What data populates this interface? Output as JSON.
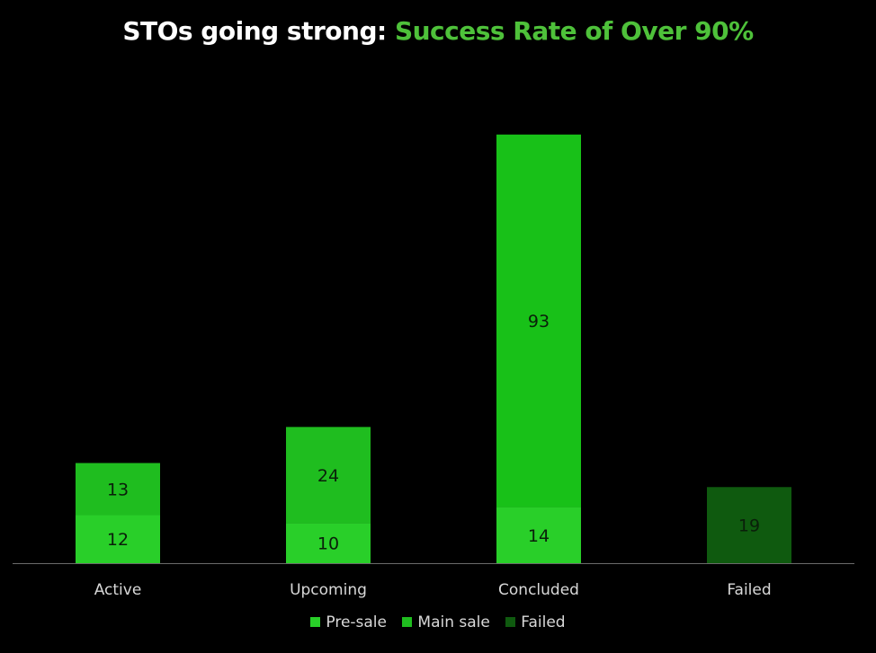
{
  "title": {
    "part1": "STOs going strong: ",
    "part2": "Success Rate of Over 90%"
  },
  "colors": {
    "background": "#000000",
    "title_accent": "#4ec13a",
    "pre_sale": "#29cf29",
    "main_sale": "#1fbd1f",
    "concluded_main": "#18c118",
    "failed": "#0f5a0f",
    "axis_line": "#6a6a6a"
  },
  "chart_data": {
    "type": "bar",
    "stacked": true,
    "categories": [
      "Active",
      "Upcoming",
      "Concluded",
      "Failed"
    ],
    "series": [
      {
        "name": "Pre-sale",
        "values": [
          12,
          10,
          14,
          null
        ]
      },
      {
        "name": "Main sale",
        "values": [
          13,
          24,
          93,
          null
        ]
      },
      {
        "name": "Failed",
        "values": [
          null,
          null,
          null,
          19
        ]
      }
    ],
    "data_labels": true,
    "ylim": [
      0,
      110
    ],
    "grid": false,
    "legend": "bottom",
    "xlabel": "",
    "ylabel": ""
  }
}
